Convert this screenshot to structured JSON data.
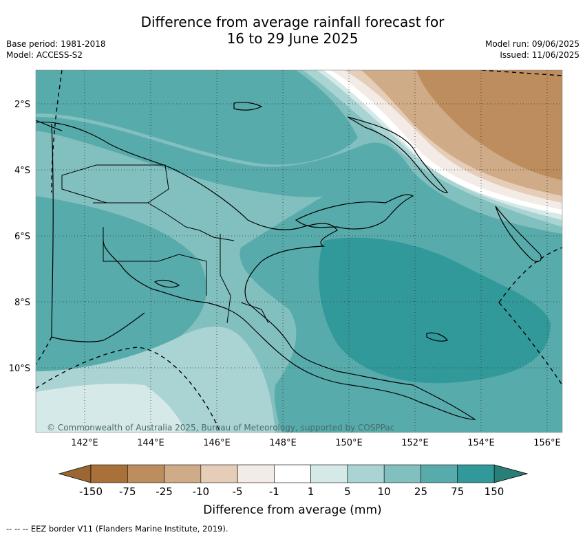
{
  "title": {
    "line1": "Difference from average rainfall forecast for",
    "line2": "16 to 29 June 2025"
  },
  "meta": {
    "base_period": "Base period: 1981-2018",
    "model": "Model: ACCESS-S2",
    "model_run": "Model run: 09/06/2025",
    "issued": "Issued: 11/06/2025"
  },
  "axes": {
    "lon_labels": [
      "142°E",
      "144°E",
      "146°E",
      "148°E",
      "150°E",
      "152°E",
      "154°E",
      "156°E"
    ],
    "lat_labels": [
      "2°S",
      "4°S",
      "6°S",
      "8°S",
      "10°S"
    ]
  },
  "copyright": "© Commonwealth of Australia 2025, Bureau of Meteorology, supported by COSPPac",
  "colorbar": {
    "label": "Difference from average (mm)",
    "ticks": [
      "-150",
      "-75",
      "-25",
      "-10",
      "-5",
      "-1",
      "1",
      "5",
      "10",
      "25",
      "75",
      "150"
    ],
    "colors": [
      "#a9703a",
      "#bd8d5e",
      "#d0ab87",
      "#e6cdb8",
      "#f3ebe6",
      "#ffffff",
      "#d5e9e8",
      "#aad4d3",
      "#82bfbf",
      "#58abab",
      "#319999",
      "#2a7e78"
    ]
  },
  "footnote": "--  --  -- EEZ border V11 (Flanders Marine Institute, 2019).",
  "palette": {
    "wet_strong": "#319999",
    "wet_mid": "#58abab",
    "wet_light": "#82bfbf",
    "wet_pale": "#aad4d3",
    "wet_faint": "#d5e9e8",
    "dry_light": "#e6cdb8",
    "dry_mid": "#d0ab87",
    "dry_strong": "#bd8d5e"
  }
}
